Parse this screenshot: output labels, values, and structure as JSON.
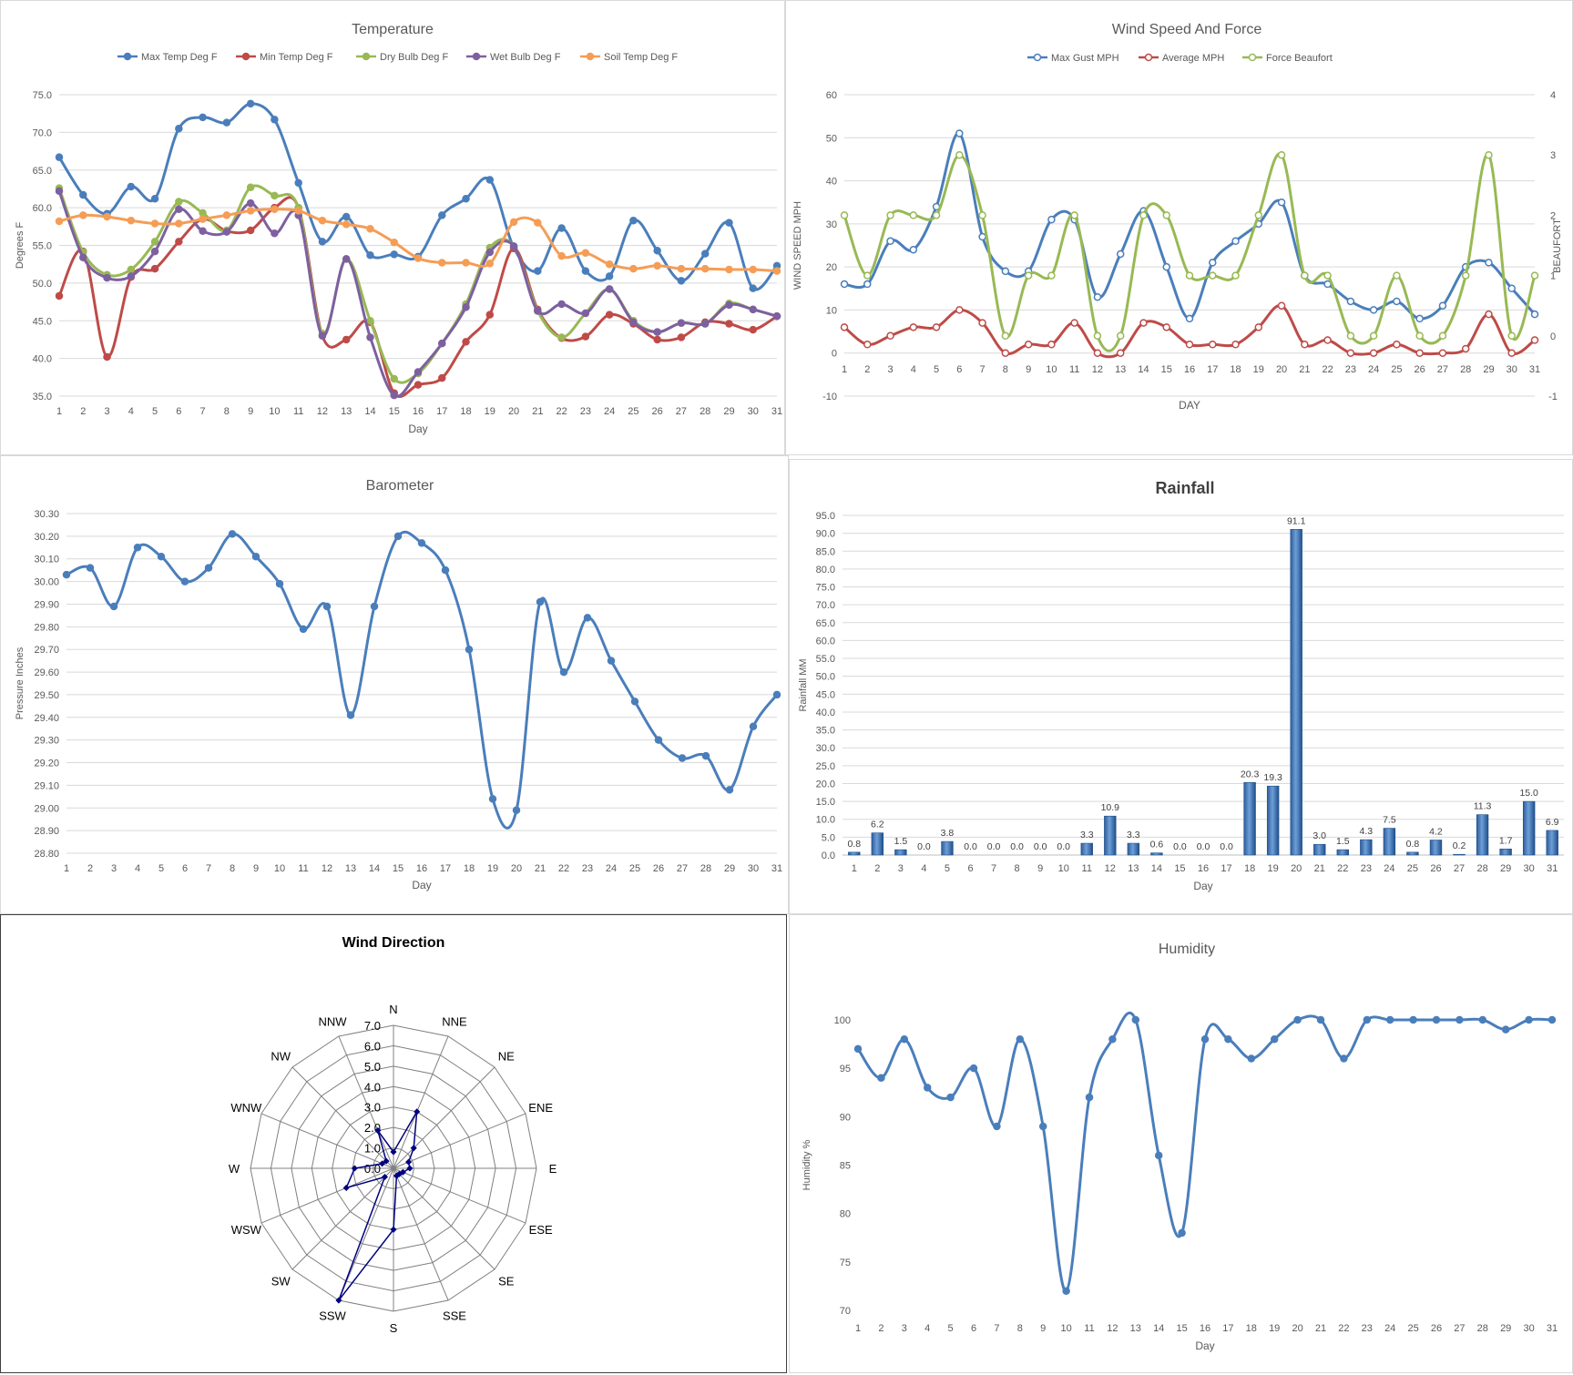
{
  "days": [
    "1",
    "2",
    "3",
    "4",
    "5",
    "6",
    "7",
    "8",
    "9",
    "10",
    "11",
    "12",
    "13",
    "14",
    "15",
    "16",
    "17",
    "18",
    "19",
    "20",
    "21",
    "22",
    "23",
    "24",
    "25",
    "26",
    "27",
    "28",
    "29",
    "30",
    "31"
  ],
  "chart_data": [
    {
      "id": "temperature",
      "type": "line",
      "title": "Temperature",
      "xlabel": "Day",
      "ylabel": "Degrees F",
      "ylim": [
        35,
        75
      ],
      "yticks": [
        "35.0",
        "40.0",
        "45.0",
        "50.0",
        "55.0",
        "60.0",
        "65.0",
        "70.0",
        "75.0"
      ],
      "legend": "top",
      "grid": true,
      "series": [
        {
          "name": "Max Temp Deg F",
          "color": "#4a7ebb",
          "values": [
            66.7,
            61.7,
            59.2,
            62.8,
            61.2,
            70.5,
            72.0,
            71.3,
            73.8,
            71.7,
            63.3,
            55.5,
            58.8,
            53.7,
            53.8,
            53.5,
            59.0,
            61.2,
            63.7,
            54.7,
            51.6,
            57.3,
            51.6,
            50.9,
            58.3,
            54.3,
            50.3,
            53.9,
            58.0,
            49.3,
            52.3
          ]
        },
        {
          "name": "Min Temp Deg F",
          "color": "#be4b48",
          "values": [
            48.3,
            54.2,
            40.2,
            50.8,
            51.9,
            55.5,
            58.5,
            56.9,
            57.0,
            60.0,
            60.0,
            43.0,
            42.5,
            44.8,
            35.4,
            36.5,
            37.4,
            42.2,
            45.8,
            54.6,
            46.5,
            42.7,
            42.9,
            45.8,
            44.6,
            42.5,
            42.8,
            44.8,
            44.6,
            43.8,
            45.6
          ]
        },
        {
          "name": "Dry Bulb Deg F",
          "color": "#98b954",
          "values": [
            62.6,
            54.1,
            51.1,
            51.8,
            55.5,
            60.8,
            59.3,
            57.0,
            62.7,
            61.6,
            60.0,
            43.3,
            53.2,
            45.0,
            37.3,
            38.0,
            42.0,
            47.2,
            54.7,
            54.9,
            46.3,
            42.8,
            46.0,
            49.2,
            45.0,
            43.5,
            44.7,
            44.6,
            47.3,
            46.5,
            45.6
          ]
        },
        {
          "name": "Wet Bulb Deg F",
          "color": "#7d60a0",
          "values": [
            62.2,
            53.4,
            50.7,
            50.9,
            54.2,
            59.8,
            56.9,
            56.8,
            60.6,
            56.6,
            59.0,
            43.0,
            53.2,
            42.8,
            35.1,
            38.2,
            42.0,
            46.8,
            54.1,
            54.9,
            46.3,
            47.2,
            46.0,
            49.2,
            44.8,
            43.5,
            44.7,
            44.6,
            47.1,
            46.5,
            45.6
          ]
        },
        {
          "name": "Soil Temp Deg F",
          "color": "#f59d56",
          "values": [
            58.2,
            59.0,
            58.8,
            58.3,
            57.9,
            57.9,
            58.5,
            59.0,
            59.6,
            59.8,
            59.6,
            58.3,
            57.8,
            57.2,
            55.4,
            53.3,
            52.7,
            52.7,
            52.6,
            58.1,
            58.0,
            53.6,
            54.0,
            52.5,
            51.9,
            52.3,
            51.9,
            51.9,
            51.8,
            51.8,
            51.6
          ]
        }
      ]
    },
    {
      "id": "wind",
      "type": "line",
      "title": "Wind Speed And Force",
      "xlabel": "DAY",
      "ylabel": "WIND SPEED MPH",
      "y2label": "BEAUFORT",
      "ylim": [
        -10,
        60
      ],
      "yticks": [
        "-10",
        "0",
        "10",
        "20",
        "30",
        "40",
        "50",
        "60"
      ],
      "y2lim": [
        -1,
        4
      ],
      "y2ticks": [
        "-1",
        "0",
        "1",
        "2",
        "3",
        "4"
      ],
      "legend": "top",
      "grid": true,
      "series": [
        {
          "name": "Max Gust MPH",
          "color": "#4a7ebb",
          "axis": "left",
          "values": [
            16,
            16,
            26,
            24,
            34,
            51,
            27,
            19,
            19,
            31,
            31,
            13,
            23,
            33,
            20,
            8,
            21,
            26,
            30,
            35,
            18,
            16,
            12,
            10,
            12,
            8,
            11,
            20,
            21,
            15,
            9
          ]
        },
        {
          "name": "Average MPH",
          "color": "#be4b48",
          "axis": "left",
          "values": [
            6,
            2,
            4,
            6,
            6,
            10,
            7,
            0,
            2,
            2,
            7,
            0,
            0,
            7,
            6,
            2,
            2,
            2,
            6,
            11,
            2,
            3,
            0,
            0,
            2,
            0,
            0,
            1,
            9,
            0,
            3
          ]
        },
        {
          "name": "Force Beaufort",
          "color": "#98b954",
          "axis": "right",
          "values": [
            2,
            1,
            2,
            2,
            2,
            3,
            2,
            0,
            1,
            1,
            2,
            0,
            0,
            2,
            2,
            1,
            1,
            1,
            2,
            3,
            1,
            1,
            0,
            0,
            1,
            0,
            0,
            1,
            3,
            0,
            1
          ]
        }
      ]
    },
    {
      "id": "barometer",
      "type": "line",
      "title": "Barometer",
      "xlabel": "Day",
      "ylabel": "Pressure Inches",
      "ylim": [
        28.8,
        30.3
      ],
      "yticks": [
        "28.80",
        "28.90",
        "29.00",
        "29.10",
        "29.20",
        "29.30",
        "29.40",
        "29.50",
        "29.60",
        "29.70",
        "29.80",
        "29.90",
        "30.00",
        "30.10",
        "30.20",
        "30.30"
      ],
      "grid": true,
      "series": [
        {
          "name": "",
          "color": "#4a7ebb",
          "values": [
            30.03,
            30.06,
            29.89,
            30.15,
            30.11,
            30.0,
            30.06,
            30.21,
            30.11,
            29.99,
            29.79,
            29.89,
            29.41,
            29.89,
            30.2,
            30.17,
            30.05,
            29.7,
            29.04,
            28.99,
            29.91,
            29.6,
            29.84,
            29.65,
            29.47,
            29.3,
            29.22,
            29.23,
            29.08,
            29.36,
            29.5
          ]
        }
      ]
    },
    {
      "id": "rainfall",
      "type": "bar",
      "title": "Rainfall",
      "xlabel": "Day",
      "ylabel": "Rainfall MM",
      "ylim": [
        0,
        95
      ],
      "yticks": [
        "0.0",
        "5.0",
        "10.0",
        "15.0",
        "20.0",
        "25.0",
        "30.0",
        "35.0",
        "40.0",
        "45.0",
        "50.0",
        "55.0",
        "60.0",
        "65.0",
        "70.0",
        "75.0",
        "80.0",
        "85.0",
        "90.0",
        "95.0"
      ],
      "grid": true,
      "values": [
        0.8,
        6.2,
        1.5,
        0.0,
        3.8,
        0.0,
        0.0,
        0.0,
        0.0,
        0.0,
        3.3,
        10.9,
        3.3,
        0.6,
        0.0,
        0.0,
        0.0,
        20.3,
        19.3,
        91.1,
        3.0,
        1.5,
        4.3,
        7.5,
        0.8,
        4.2,
        0.2,
        11.3,
        1.7,
        15.0,
        6.9
      ],
      "labels": [
        "0.8",
        "6.2",
        "1.5",
        "0.0",
        "3.8",
        "0.0",
        "0.0",
        "0.0",
        "0.0",
        "0.0",
        "3.3",
        "10.9",
        "3.3",
        "0.6",
        "0.0",
        "0.0",
        "0.0",
        "20.3",
        "19.3",
        "91.1",
        "3.0",
        "1.5",
        "4.3",
        "7.5",
        "0.8",
        "4.2",
        "0.2",
        "11.3",
        "1.7",
        "15.0",
        "6.9"
      ]
    },
    {
      "id": "wind-direction",
      "type": "radar",
      "title": "Wind Direction",
      "ylim": [
        0,
        7
      ],
      "rticks": [
        "0.0",
        "1.0",
        "2.0",
        "3.0",
        "4.0",
        "5.0",
        "6.0",
        "7.0"
      ],
      "categories": [
        "N",
        "NNE",
        "NE",
        "ENE",
        "E",
        "ESE",
        "SE",
        "SSE",
        "S",
        "SSW",
        "SW",
        "WSW",
        "W",
        "WNW",
        "NW",
        "NNW"
      ],
      "values": [
        0.8,
        3.0,
        1.4,
        0.8,
        0.8,
        0.5,
        0.4,
        0.4,
        3.0,
        7.0,
        0.6,
        2.5,
        1.9,
        0.6,
        0.5,
        2.0
      ]
    },
    {
      "id": "humidity",
      "type": "line",
      "title": "Humidity",
      "xlabel": "Day",
      "ylabel": "Humidity %",
      "ylim": [
        70,
        100
      ],
      "yticks": [
        "70",
        "75",
        "80",
        "85",
        "90",
        "95",
        "100"
      ],
      "grid": false,
      "series": [
        {
          "name": "",
          "color": "#4a7ebb",
          "values": [
            97,
            94,
            98,
            93,
            92,
            95,
            89,
            98,
            89,
            72,
            92,
            98,
            100,
            86,
            78,
            98,
            98,
            96,
            98,
            100,
            100,
            96,
            100,
            100,
            100,
            100,
            100,
            100,
            99,
            100,
            100
          ]
        }
      ]
    }
  ]
}
